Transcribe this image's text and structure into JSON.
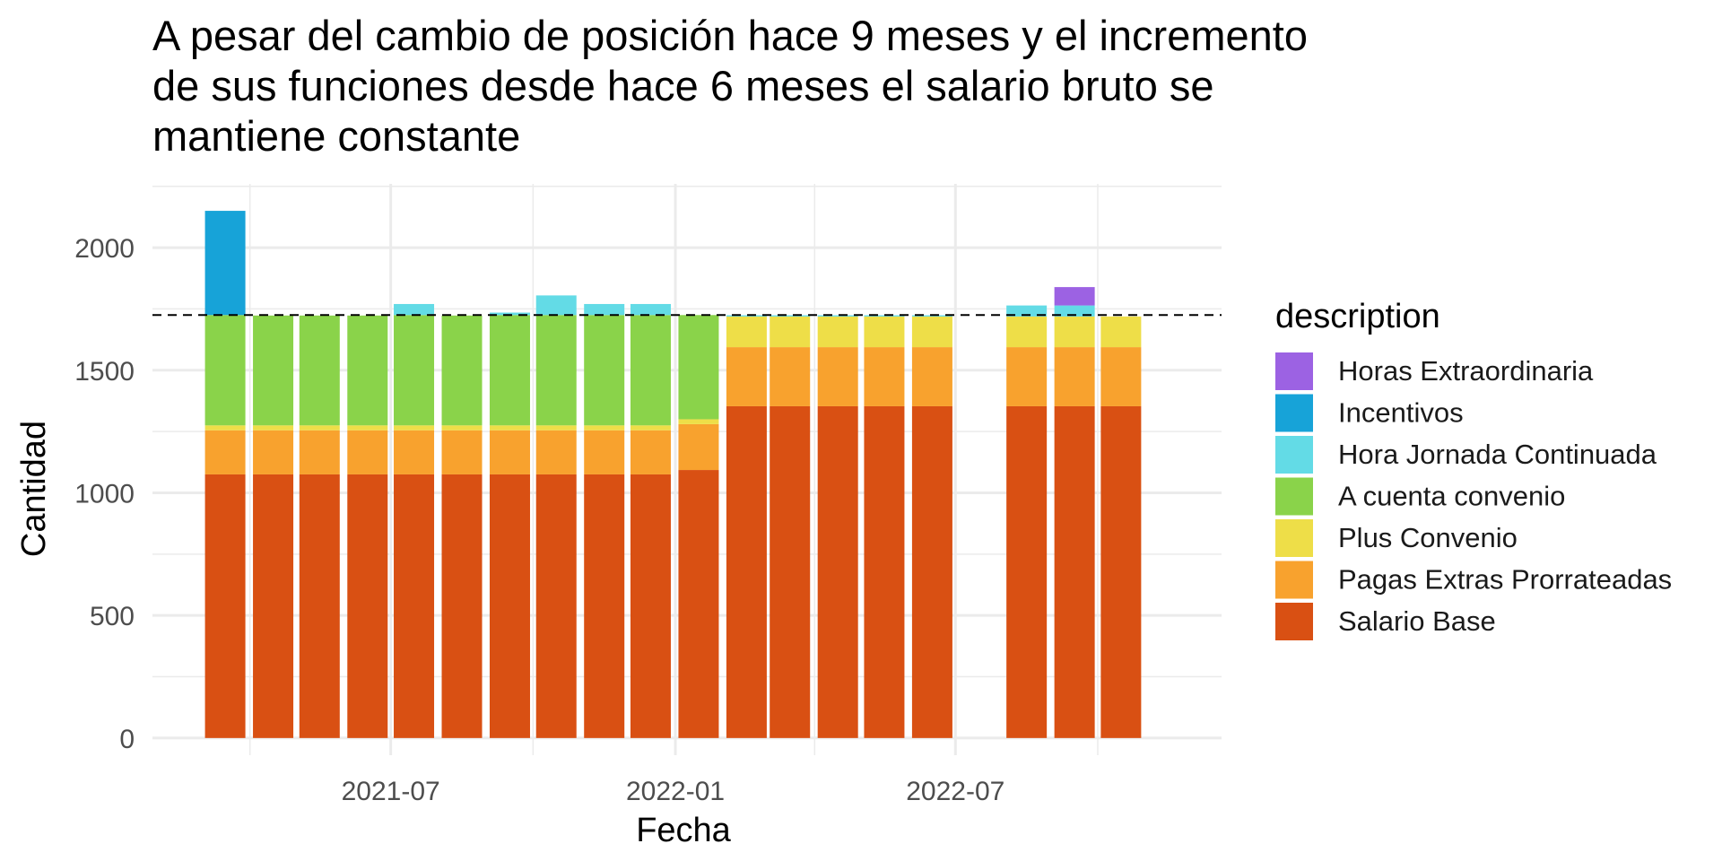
{
  "chart_data": {
    "type": "bar",
    "stacked": true,
    "title_lines": [
      "A pesar del cambio de posición hace 9 meses y el incremento",
      "de sus funciones desde hace 6 meses el salario bruto se",
      "mantiene constante"
    ],
    "xlabel": "Fecha",
    "ylabel": "Cantidad",
    "x_ticks": [
      "2021-07",
      "2022-01",
      "2022-07"
    ],
    "y_ticks": [
      "0",
      "500",
      "1000",
      "1500",
      "2000"
    ],
    "ylim": [
      -70,
      2260
    ],
    "reference_line": {
      "y": 1725,
      "style": "dashed"
    },
    "grid": true,
    "legend": {
      "title": "description",
      "position": "right"
    },
    "categories": [
      "2021-03",
      "2021-04",
      "2021-05",
      "2021-06",
      "2021-07",
      "2021-08",
      "2021-09",
      "2021-10",
      "2021-11",
      "2021-12",
      "2022-01",
      "2022-02",
      "2022-03",
      "2022-04",
      "2022-05",
      "2022-06",
      "2022-08",
      "2022-09",
      "2022-10"
    ],
    "series": [
      {
        "name": "Salario Base",
        "color": "#D95013",
        "values": [
          1075,
          1075,
          1075,
          1075,
          1075,
          1075,
          1075,
          1075,
          1075,
          1075,
          1093,
          1353,
          1353,
          1353,
          1353,
          1353,
          1353,
          1353,
          1353
        ]
      },
      {
        "name": "Pagas Extras Prorrateadas",
        "color": "#F8A22E",
        "values": [
          180,
          180,
          180,
          180,
          180,
          180,
          180,
          180,
          180,
          180,
          187,
          241,
          241,
          241,
          241,
          241,
          241,
          241,
          241
        ]
      },
      {
        "name": "Plus Convenio",
        "color": "#EEDE48",
        "values": [
          20,
          20,
          20,
          20,
          20,
          20,
          20,
          20,
          20,
          20,
          20,
          125,
          125,
          125,
          125,
          125,
          125,
          125,
          125
        ]
      },
      {
        "name": "A cuenta convenio",
        "color": "#8AD34A",
        "values": [
          450,
          448,
          448,
          448,
          450,
          448,
          450,
          450,
          450,
          450,
          425,
          0,
          0,
          0,
          0,
          0,
          0,
          0,
          0
        ]
      },
      {
        "name": "Hora Jornada Continuada",
        "color": "#63DBE6",
        "values": [
          0,
          0,
          0,
          0,
          45,
          0,
          10,
          80,
          45,
          45,
          0,
          5,
          5,
          5,
          5,
          5,
          45,
          45,
          0
        ]
      },
      {
        "name": "Incentivos",
        "color": "#17A3D8",
        "values": [
          425,
          0,
          0,
          0,
          0,
          0,
          0,
          0,
          0,
          0,
          0,
          0,
          0,
          0,
          0,
          0,
          0,
          0,
          0
        ]
      },
      {
        "name": "Horas Extraordinaria",
        "color": "#9C62E3",
        "values": [
          0,
          0,
          0,
          0,
          0,
          0,
          0,
          0,
          0,
          0,
          0,
          0,
          0,
          0,
          0,
          0,
          0,
          75,
          0
        ]
      }
    ]
  }
}
